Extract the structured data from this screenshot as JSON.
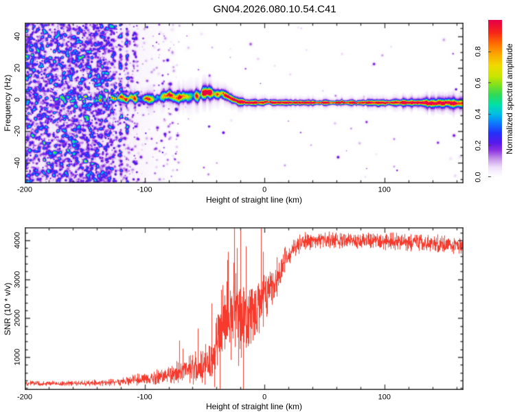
{
  "title": "GN04.2026.080.10.54.C41",
  "colors": {
    "snr_line": "#f63b2e",
    "frame": "#3a3a3a",
    "background": "#ffffff"
  },
  "chart_data": [
    {
      "id": "spectrogram",
      "type": "heatmap",
      "xlabel": "Height of straight line (km)",
      "ylabel": "Frequency (Hz)",
      "xlim": [
        -200,
        166
      ],
      "ylim": [
        -52.8,
        48.5
      ],
      "xticks": [
        -200,
        -100,
        0,
        100
      ],
      "xminor": 20,
      "yticks": [
        -40,
        -20,
        0,
        20,
        40
      ],
      "yminor": 5,
      "colorbar": {
        "label": "Normalized spectral amplitude",
        "ticks": [
          0.0,
          0.2,
          0.4,
          0.6,
          0.8
        ],
        "range": [
          0,
          1
        ]
      },
      "colormap": [
        [
          0.0,
          "#ffffff"
        ],
        [
          0.06,
          "#f0e2fa"
        ],
        [
          0.12,
          "#c08ce8"
        ],
        [
          0.17,
          "#8c32e1"
        ],
        [
          0.22,
          "#5519eb"
        ],
        [
          0.28,
          "#2332fa"
        ],
        [
          0.34,
          "#0f78ff"
        ],
        [
          0.4,
          "#00bee6"
        ],
        [
          0.46,
          "#00e1aa"
        ],
        [
          0.52,
          "#2dda5a"
        ],
        [
          0.58,
          "#78e123"
        ],
        [
          0.64,
          "#c8e600"
        ],
        [
          0.71,
          "#f0dc00"
        ],
        [
          0.78,
          "#fcaa00"
        ],
        [
          0.85,
          "#ff6e00"
        ],
        [
          0.92,
          "#f62819"
        ],
        [
          1.0,
          "#e80048"
        ]
      ],
      "noise_density": [
        [
          -200,
          0.95
        ],
        [
          -135,
          0.92
        ],
        [
          -120,
          0.72
        ],
        [
          -105,
          0.45
        ],
        [
          -92,
          0.25
        ],
        [
          -80,
          0.12
        ],
        [
          -70,
          0.05
        ],
        [
          -55,
          0.018
        ],
        [
          -35,
          0.007
        ],
        [
          166,
          0.004
        ]
      ],
      "trace": [
        {
          "x": -148,
          "f": 0.0,
          "w": 2.0,
          "a": 0.3
        },
        {
          "x": -130,
          "f": 0.5,
          "w": 2.2,
          "a": 0.42
        },
        {
          "x": -120,
          "f": 1.0,
          "w": 2.4,
          "a": 0.52
        },
        {
          "x": -110,
          "f": 1.2,
          "w": 2.6,
          "a": 0.58
        },
        {
          "x": -100,
          "f": 1.5,
          "w": 2.8,
          "a": 0.62
        },
        {
          "x": -90,
          "f": 1.6,
          "w": 2.8,
          "a": 0.65
        },
        {
          "x": -80,
          "f": 2.0,
          "w": 3.0,
          "a": 0.7
        },
        {
          "x": -70,
          "f": 2.2,
          "w": 3.2,
          "a": 0.74
        },
        {
          "x": -60,
          "f": 3.0,
          "w": 3.4,
          "a": 0.78
        },
        {
          "x": -50,
          "f": 3.8,
          "w": 3.6,
          "a": 0.82
        },
        {
          "x": -44,
          "f": 4.6,
          "w": 3.4,
          "a": 0.86
        },
        {
          "x": -40,
          "f": 4.5,
          "w": 3.0,
          "a": 0.92
        },
        {
          "x": -35,
          "f": 3.3,
          "w": 2.6,
          "a": 0.98
        },
        {
          "x": -30,
          "f": 1.8,
          "w": 2.2,
          "a": 1.0
        },
        {
          "x": -26,
          "f": 0.2,
          "w": 2.0,
          "a": 1.0
        },
        {
          "x": -22,
          "f": -1.2,
          "w": 1.9,
          "a": 1.0
        },
        {
          "x": -15,
          "f": -1.6,
          "w": 1.7,
          "a": 1.0
        },
        {
          "x": 0,
          "f": -1.7,
          "w": 1.4,
          "a": 1.0
        },
        {
          "x": 60,
          "f": -1.7,
          "w": 1.3,
          "a": 1.0
        },
        {
          "x": 100,
          "f": -1.7,
          "w": 1.5,
          "a": 1.0
        },
        {
          "x": 125,
          "f": -1.7,
          "w": 1.8,
          "a": 0.98
        },
        {
          "x": 145,
          "f": -1.9,
          "w": 2.3,
          "a": 0.95
        },
        {
          "x": 166,
          "f": -2.0,
          "w": 2.8,
          "a": 0.92
        }
      ],
      "seed": 1337
    },
    {
      "id": "snr",
      "type": "line",
      "xlabel": "Height of straight line (km)",
      "ylabel": "SNR (10 * v/v)",
      "xlim": [
        -200,
        166
      ],
      "ylim": [
        153,
        4333
      ],
      "xticks": [
        -200,
        -100,
        0,
        100
      ],
      "xminor": 20,
      "yticks": [
        1000,
        2000,
        3000,
        4000
      ],
      "yminor": 200,
      "line_color": "#f63b2e",
      "envelope": [
        {
          "x": -200,
          "m": 320,
          "s": 70
        },
        {
          "x": -160,
          "m": 325,
          "s": 75
        },
        {
          "x": -140,
          "m": 335,
          "s": 85
        },
        {
          "x": -125,
          "m": 355,
          "s": 95
        },
        {
          "x": -112,
          "m": 390,
          "s": 130
        },
        {
          "x": -100,
          "m": 430,
          "s": 170
        },
        {
          "x": -90,
          "m": 480,
          "s": 210
        },
        {
          "x": -80,
          "m": 545,
          "s": 270
        },
        {
          "x": -70,
          "m": 630,
          "s": 340
        },
        {
          "x": -60,
          "m": 730,
          "s": 430
        },
        {
          "x": -52,
          "m": 830,
          "s": 520
        },
        {
          "x": -45,
          "m": 980,
          "s": 650
        },
        {
          "x": -40,
          "m": 1250,
          "s": 850
        },
        {
          "x": -35,
          "m": 1750,
          "s": 1050
        },
        {
          "x": -30,
          "m": 2150,
          "s": 1200
        },
        {
          "x": -24,
          "m": 2350,
          "s": 1300
        },
        {
          "x": -20,
          "m": 1850,
          "s": 1200
        },
        {
          "x": -15,
          "m": 1950,
          "s": 1000
        },
        {
          "x": -10,
          "m": 2150,
          "s": 900
        },
        {
          "x": -5,
          "m": 2400,
          "s": 820
        },
        {
          "x": 0,
          "m": 2600,
          "s": 780
        },
        {
          "x": 5,
          "m": 2800,
          "s": 700
        },
        {
          "x": 10,
          "m": 3050,
          "s": 580
        },
        {
          "x": 15,
          "m": 3350,
          "s": 440
        },
        {
          "x": 20,
          "m": 3620,
          "s": 330
        },
        {
          "x": 25,
          "m": 3820,
          "s": 270
        },
        {
          "x": 30,
          "m": 3960,
          "s": 240
        },
        {
          "x": 45,
          "m": 4020,
          "s": 220
        },
        {
          "x": 70,
          "m": 4010,
          "s": 215
        },
        {
          "x": 100,
          "m": 3975,
          "s": 215
        },
        {
          "x": 125,
          "m": 3940,
          "s": 220
        },
        {
          "x": 145,
          "m": 3895,
          "s": 230
        },
        {
          "x": 166,
          "m": 3860,
          "s": 245
        }
      ],
      "peak_spike": {
        "x": -23,
        "v": 3800
      },
      "seed": 4242
    }
  ]
}
